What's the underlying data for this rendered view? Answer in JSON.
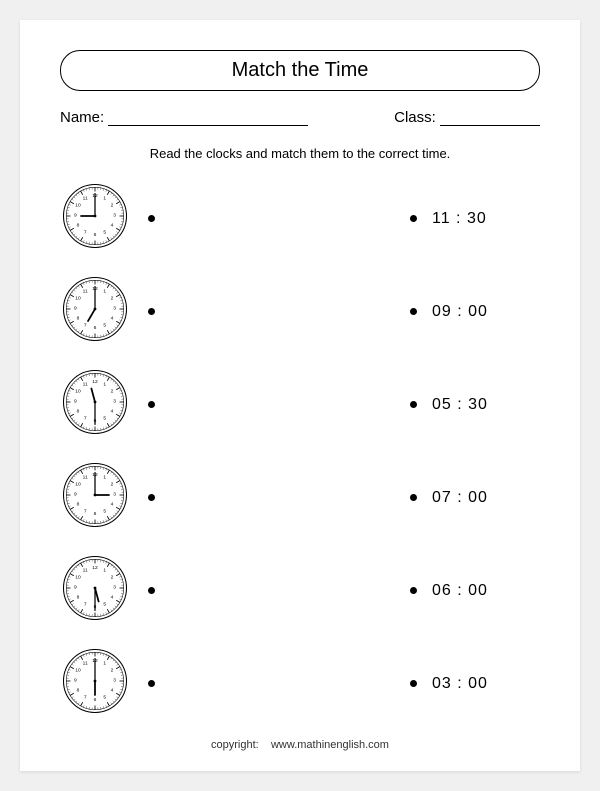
{
  "title": "Match the Time",
  "name_label": "Name:",
  "class_label": "Class:",
  "instruction": "Read the clocks and match them to the correct time.",
  "clocks": [
    {
      "hour": 9,
      "minute": 0
    },
    {
      "hour": 7,
      "minute": 0
    },
    {
      "hour": 11,
      "minute": 30
    },
    {
      "hour": 3,
      "minute": 0
    },
    {
      "hour": 5,
      "minute": 30
    },
    {
      "hour": 6,
      "minute": 0
    }
  ],
  "times": [
    "11 : 30",
    "09 : 00",
    "05 : 30",
    "07 : 00",
    "06 : 00",
    "03 : 00"
  ],
  "copyright_label": "copyright:",
  "copyright_text": "www.mathinenglish.com",
  "style": {
    "clock_size": 70,
    "clock_stroke": "#000000",
    "clock_fill": "#ffffff",
    "dot_color": "#000000",
    "title_fontsize": 20,
    "instruction_fontsize": 13,
    "time_fontsize": 16
  }
}
